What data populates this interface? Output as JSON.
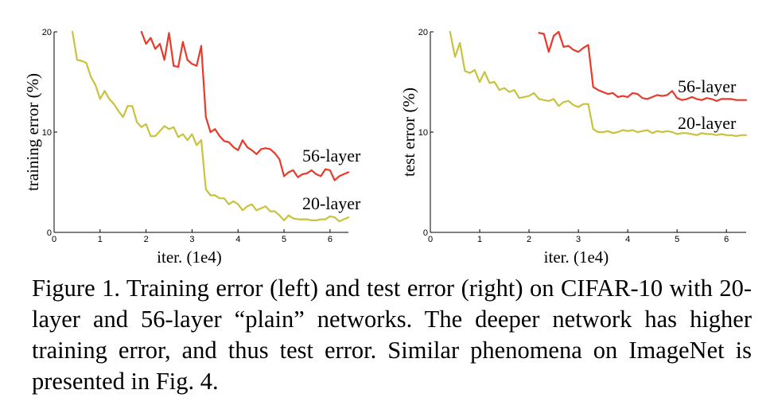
{
  "chart_data": [
    {
      "type": "line",
      "xlabel": "iter. (1e4)",
      "ylabel": "training error (%)",
      "xlim": [
        0,
        6.4
      ],
      "ylim": [
        0,
        20
      ],
      "xticks": [
        "0",
        "1",
        "2",
        "3",
        "4",
        "5",
        "6"
      ],
      "yticks": [
        "0",
        "10",
        "20"
      ],
      "grid": false,
      "series": [
        {
          "name": "56-layer",
          "color": "#e8392a",
          "x": [
            1.9,
            2.0,
            2.1,
            2.2,
            2.3,
            2.4,
            2.5,
            2.6,
            2.7,
            2.8,
            2.9,
            3.0,
            3.1,
            3.2,
            3.3,
            3.4,
            3.5,
            3.6,
            3.7,
            3.8,
            3.9,
            4.0,
            4.1,
            4.2,
            4.3,
            4.4,
            4.5,
            4.6,
            4.7,
            4.8,
            4.9,
            5.0,
            5.1,
            5.2,
            5.3,
            5.4,
            5.5,
            5.6,
            5.7,
            5.8,
            5.9,
            6.0,
            6.1,
            6.2,
            6.3,
            6.4
          ],
          "y": [
            20.0,
            18.8,
            19.4,
            18.3,
            18.8,
            17.2,
            19.9,
            16.6,
            16.5,
            19.0,
            17.2,
            16.8,
            16.6,
            18.6,
            11.5,
            10.0,
            10.3,
            9.6,
            9.1,
            9.0,
            8.5,
            8.2,
            9.2,
            8.5,
            8.2,
            7.8,
            8.3,
            8.4,
            8.3,
            7.9,
            7.3,
            5.6,
            6.0,
            6.2,
            5.5,
            5.8,
            5.9,
            6.2,
            5.8,
            5.6,
            6.3,
            6.2,
            5.2,
            5.6,
            5.8,
            6.0
          ]
        },
        {
          "name": "20-layer",
          "color": "#c9c23e",
          "x": [
            0.4,
            0.5,
            0.6,
            0.7,
            0.8,
            0.9,
            1.0,
            1.1,
            1.2,
            1.3,
            1.4,
            1.5,
            1.6,
            1.7,
            1.8,
            1.9,
            2.0,
            2.1,
            2.2,
            2.3,
            2.4,
            2.5,
            2.6,
            2.7,
            2.8,
            2.9,
            3.0,
            3.1,
            3.2,
            3.3,
            3.4,
            3.5,
            3.6,
            3.7,
            3.8,
            3.9,
            4.0,
            4.1,
            4.2,
            4.3,
            4.4,
            4.5,
            4.6,
            4.7,
            4.8,
            4.9,
            5.0,
            5.1,
            5.2,
            5.3,
            5.4,
            5.5,
            5.6,
            5.7,
            5.8,
            5.9,
            6.0,
            6.1,
            6.2,
            6.3,
            6.4
          ],
          "y": [
            20.0,
            17.2,
            17.1,
            16.9,
            15.5,
            14.7,
            13.3,
            14.1,
            13.3,
            12.8,
            12.1,
            11.5,
            12.6,
            12.6,
            11.0,
            10.5,
            10.8,
            9.6,
            9.6,
            10.1,
            10.6,
            10.3,
            10.5,
            9.5,
            9.8,
            9.2,
            9.8,
            8.7,
            9.2,
            4.3,
            3.7,
            3.7,
            3.4,
            3.4,
            2.8,
            3.1,
            2.8,
            2.2,
            2.6,
            2.8,
            2.2,
            2.4,
            2.6,
            2.1,
            2.1,
            1.7,
            1.2,
            1.7,
            1.4,
            1.3,
            1.3,
            1.3,
            1.2,
            1.2,
            1.3,
            1.3,
            1.6,
            1.5,
            1.1,
            1.3,
            1.5
          ]
        }
      ]
    },
    {
      "type": "line",
      "xlabel": "iter. (1e4)",
      "ylabel": "test error (%)",
      "xlim": [
        0,
        6.4
      ],
      "ylim": [
        0,
        20
      ],
      "xticks": [
        "0",
        "1",
        "2",
        "3",
        "4",
        "5",
        "6"
      ],
      "yticks": [
        "0",
        "10",
        "20"
      ],
      "grid": false,
      "series": [
        {
          "name": "56-layer",
          "color": "#e8392a",
          "x": [
            2.2,
            2.3,
            2.4,
            2.5,
            2.6,
            2.7,
            2.8,
            2.9,
            3.0,
            3.1,
            3.2,
            3.3,
            3.4,
            3.5,
            3.6,
            3.7,
            3.8,
            3.9,
            4.0,
            4.1,
            4.2,
            4.3,
            4.4,
            4.5,
            4.6,
            4.7,
            4.8,
            4.9,
            5.0,
            5.1,
            5.2,
            5.3,
            5.4,
            5.5,
            5.6,
            5.7,
            5.8,
            5.9,
            6.0,
            6.1,
            6.2,
            6.3,
            6.4
          ],
          "y": [
            19.9,
            19.8,
            18.0,
            19.6,
            20.0,
            18.5,
            18.6,
            18.2,
            18.0,
            18.4,
            18.7,
            14.5,
            14.2,
            14.0,
            13.8,
            13.9,
            13.5,
            13.6,
            13.5,
            13.9,
            13.8,
            13.4,
            13.3,
            13.5,
            13.7,
            13.6,
            13.7,
            14.1,
            13.4,
            13.2,
            13.3,
            13.5,
            13.3,
            13.2,
            13.4,
            13.3,
            13.1,
            13.3,
            13.3,
            13.3,
            13.2,
            13.2,
            13.2
          ]
        },
        {
          "name": "20-layer",
          "color": "#c9c23e",
          "x": [
            0.4,
            0.5,
            0.6,
            0.7,
            0.8,
            0.9,
            1.0,
            1.1,
            1.2,
            1.3,
            1.4,
            1.5,
            1.6,
            1.7,
            1.8,
            1.9,
            2.0,
            2.1,
            2.2,
            2.3,
            2.4,
            2.5,
            2.6,
            2.7,
            2.8,
            2.9,
            3.0,
            3.1,
            3.2,
            3.3,
            3.4,
            3.5,
            3.6,
            3.7,
            3.8,
            3.9,
            4.0,
            4.1,
            4.2,
            4.3,
            4.4,
            4.5,
            4.6,
            4.7,
            4.8,
            4.9,
            5.0,
            5.1,
            5.2,
            5.3,
            5.4,
            5.5,
            5.6,
            5.7,
            5.8,
            5.9,
            6.0,
            6.1,
            6.2,
            6.3,
            6.4
          ],
          "y": [
            20.0,
            17.5,
            18.9,
            16.1,
            15.9,
            16.2,
            15.0,
            16.0,
            14.9,
            15.0,
            14.2,
            14.4,
            14.0,
            14.2,
            13.4,
            13.5,
            13.6,
            13.9,
            13.3,
            13.2,
            13.1,
            13.3,
            12.6,
            13.0,
            13.1,
            12.7,
            12.5,
            12.8,
            12.8,
            10.3,
            10.0,
            10.0,
            10.1,
            9.9,
            10.0,
            10.2,
            10.1,
            10.2,
            10.0,
            10.1,
            10.2,
            9.9,
            10.1,
            10.0,
            10.1,
            10.0,
            9.8,
            9.9,
            9.9,
            9.8,
            9.7,
            9.9,
            9.8,
            9.8,
            9.7,
            9.8,
            9.7,
            9.7,
            9.6,
            9.7,
            9.7
          ]
        }
      ]
    }
  ],
  "caption": "Figure 1. Training error (left) and test error (right) on CIFAR-10 with 20-layer and 56-layer “plain” networks. The deeper network has higher training error, and thus test error. Similar phenomena on ImageNet is presented in Fig. 4."
}
